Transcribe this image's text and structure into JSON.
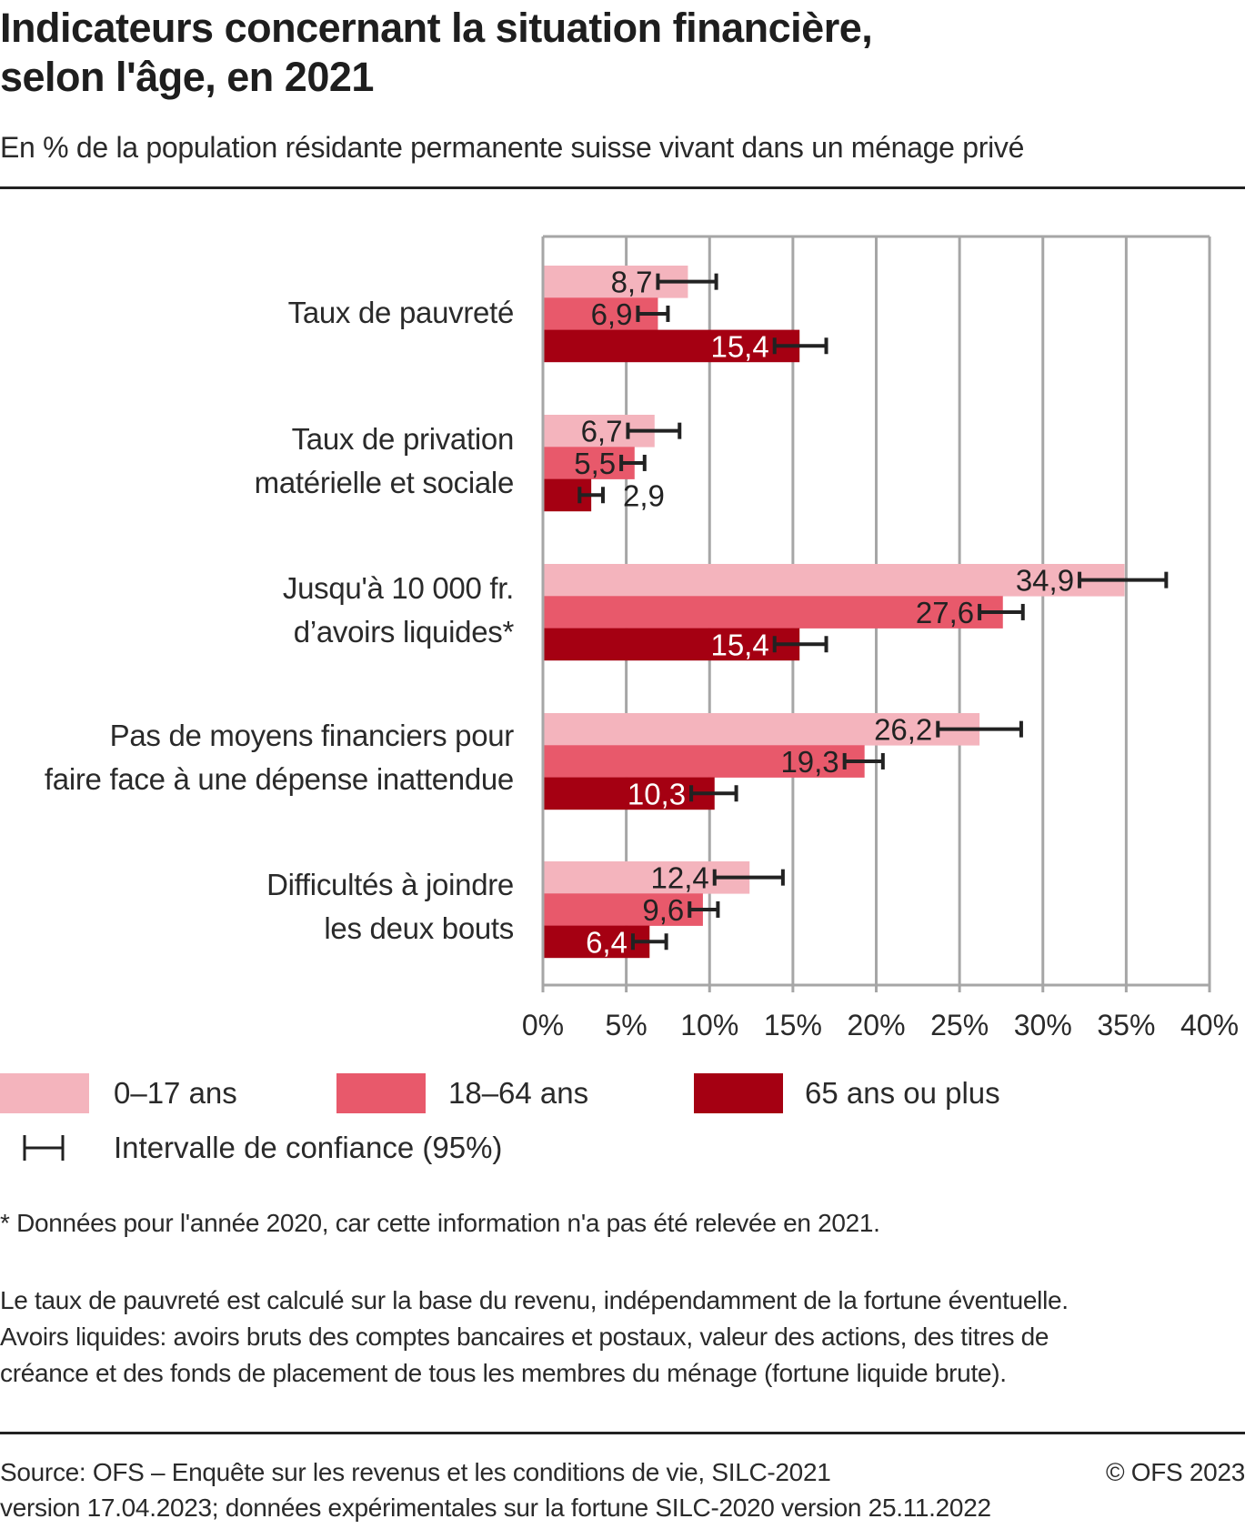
{
  "header": {
    "title_line1": "Indicateurs concernant la situation financière,",
    "title_line2": "selon l'âge, en 2021",
    "subtitle": "En % de la population résidante permanente suisse vivant dans un ménage privé"
  },
  "chart_data": {
    "type": "bar",
    "orientation": "horizontal",
    "title": "Indicateurs concernant la situation financière, selon l'âge, en 2021",
    "subtitle": "En % de la population résidante permanente suisse vivant dans un ménage privé",
    "categories": [
      [
        "Taux de pauvreté"
      ],
      [
        "Taux de privation",
        "matérielle et sociale"
      ],
      [
        "Jusqu'à 10 000 fr.",
        "d’avoirs liquides*"
      ],
      [
        "Pas de moyens financiers pour",
        "faire face à une dépense inattendue"
      ],
      [
        "Difficultés à joindre",
        "les deux bouts"
      ]
    ],
    "series": [
      {
        "name": "0–17 ans",
        "color": "#f4b4bd",
        "values": [
          8.7,
          6.7,
          34.9,
          26.2,
          12.4
        ],
        "labels": [
          "8,7",
          "6,7",
          "34,9",
          "26,2",
          "12,4"
        ],
        "ci_low": [
          6.9,
          5.1,
          32.2,
          23.7,
          10.3
        ],
        "ci_high": [
          10.4,
          8.2,
          37.4,
          28.7,
          14.4
        ]
      },
      {
        "name": "18–64 ans",
        "color": "#e8596b",
        "values": [
          6.9,
          5.5,
          27.6,
          19.3,
          9.6
        ],
        "labels": [
          "6,9",
          "5,5",
          "27,6",
          "19,3",
          "9,6"
        ],
        "ci_low": [
          5.7,
          4.7,
          26.2,
          18.1,
          8.8
        ],
        "ci_high": [
          7.5,
          6.1,
          28.8,
          20.4,
          10.5
        ]
      },
      {
        "name": "65 ans ou plus",
        "color": "#a50012",
        "values": [
          15.4,
          2.9,
          15.4,
          10.3,
          6.4
        ],
        "labels": [
          "15,4",
          "2,9",
          "15,4",
          "10,3",
          "6,4"
        ],
        "ci_low": [
          13.9,
          2.2,
          13.9,
          8.9,
          5.4
        ],
        "ci_high": [
          17.0,
          3.6,
          17.0,
          11.6,
          7.4
        ]
      }
    ],
    "xlim": [
      0,
      40
    ],
    "xticks": [
      0,
      5,
      10,
      15,
      20,
      25,
      30,
      35,
      40
    ],
    "xtick_labels": [
      "0%",
      "5%",
      "10%",
      "15%",
      "20%",
      "25%",
      "30%",
      "35%",
      "40%"
    ],
    "grid": true,
    "legend_position": "bottom",
    "ci_legend": "Intervalle de confiance (95%)"
  },
  "notes": {
    "footnote": "* Données pour l'année 2020, car cette information n'a pas été relevée en 2021.",
    "definitions": [
      "Le taux de pauvreté est calculé sur la base du revenu, indépendamment de la fortune éventuelle.",
      "Avoirs liquides: avoirs bruts des comptes bancaires et postaux, valeur des actions, des titres de",
      "créance et des fonds de placement de tous les membres du ménage (fortune liquide brute)."
    ]
  },
  "footer": {
    "source_line1": "Source: OFS – Enquête sur les revenus et les conditions de vie, SILC-2021",
    "source_line2": "version 17.04.2023; données expérimentales sur la fortune SILC-2020 version 25.11.2022",
    "copyright": "© OFS 2023"
  },
  "colors": {
    "grid": "#a6a6a6",
    "error_bar": "#222222",
    "label_on_bar_dark": "#222222",
    "label_on_bar_light": "#ffffff"
  }
}
